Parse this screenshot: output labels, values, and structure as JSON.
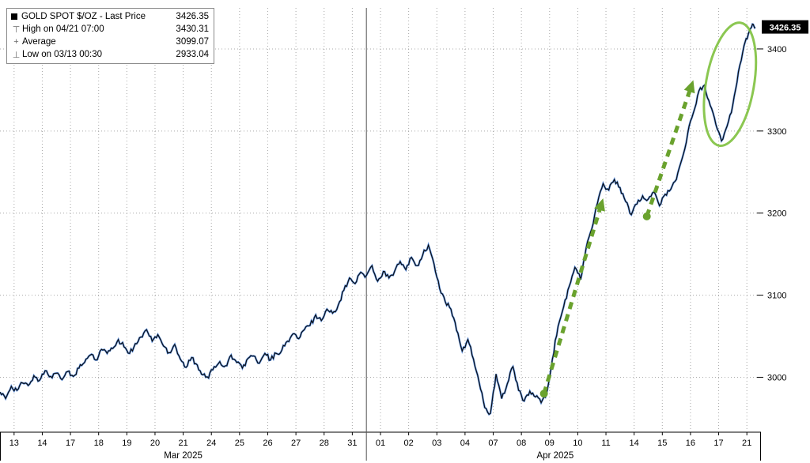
{
  "legend": {
    "title": "GOLD SPOT $/OZ - Last Price",
    "title_value": "3426.35",
    "rows": [
      {
        "icon": "high-marker-icon",
        "icon_glyph": "⊤",
        "label": "High on 04/21 07:00",
        "value": "3430.31"
      },
      {
        "icon": "average-marker-icon",
        "icon_glyph": "+",
        "label": "Average",
        "value": "3099.07"
      },
      {
        "icon": "low-marker-icon",
        "icon_glyph": "⊥",
        "label": "Low on 03/13 00:30",
        "value": "2933.04"
      }
    ]
  },
  "last_price_badge": "3426.35",
  "chart_data": {
    "type": "line",
    "title": "GOLD SPOT $/OZ - Last Price",
    "xlabel": "",
    "ylabel": "",
    "ylim": [
      2935,
      3450
    ],
    "y_ticks": [
      3000,
      3100,
      3200,
      3300,
      3400
    ],
    "x_ticks": [
      "13",
      "14",
      "17",
      "18",
      "19",
      "20",
      "21",
      "24",
      "25",
      "26",
      "27",
      "28",
      "31",
      "01",
      "02",
      "03",
      "04",
      "07",
      "08",
      "09",
      "10",
      "11",
      "14",
      "15",
      "16",
      "17",
      "21"
    ],
    "month_labels": [
      {
        "label": "Mar 2025",
        "center_day": 6.5
      },
      {
        "label": "Apr 2025",
        "center_day": 19.7
      }
    ],
    "month_divider_index": 13,
    "grid": true,
    "legend_position": "top-left",
    "last_price": 3426.35,
    "high": 3430.31,
    "average": 3099.07,
    "low": 2933.04,
    "colors": {
      "grid": "#a8a8a8",
      "axis": "#000000",
      "badge_bg": "#000000",
      "badge_text": "#ffffff"
    },
    "series": [
      {
        "name": "GOLD SPOT $/OZ Last Price",
        "color": "#0a0a0a",
        "glow": "#2f6fd0",
        "points": [
          [
            0.0,
            2982
          ],
          [
            0.2,
            2974
          ],
          [
            0.4,
            2989
          ],
          [
            0.6,
            2984
          ],
          [
            0.8,
            2993
          ],
          [
            1.0,
            2990
          ],
          [
            1.2,
            3002
          ],
          [
            1.4,
            2996
          ],
          [
            1.6,
            3008
          ],
          [
            1.8,
            3001
          ],
          [
            2.0,
            3005
          ],
          [
            2.2,
            2997
          ],
          [
            2.4,
            3007
          ],
          [
            2.6,
            3001
          ],
          [
            2.8,
            3011
          ],
          [
            3.0,
            3018
          ],
          [
            3.2,
            3027
          ],
          [
            3.4,
            3021
          ],
          [
            3.6,
            3034
          ],
          [
            3.8,
            3029
          ],
          [
            4.0,
            3035
          ],
          [
            4.2,
            3046
          ],
          [
            4.4,
            3037
          ],
          [
            4.6,
            3029
          ],
          [
            4.8,
            3041
          ],
          [
            5.0,
            3049
          ],
          [
            5.2,
            3058
          ],
          [
            5.4,
            3044
          ],
          [
            5.6,
            3052
          ],
          [
            5.8,
            3038
          ],
          [
            6.0,
            3030
          ],
          [
            6.2,
            3040
          ],
          [
            6.4,
            3022
          ],
          [
            6.6,
            3012
          ],
          [
            6.8,
            3024
          ],
          [
            7.0,
            3015
          ],
          [
            7.2,
            3003
          ],
          [
            7.4,
            2999
          ],
          [
            7.6,
            3013
          ],
          [
            7.8,
            3019
          ],
          [
            8.0,
            3014
          ],
          [
            8.2,
            3027
          ],
          [
            8.4,
            3018
          ],
          [
            8.6,
            3011
          ],
          [
            8.8,
            3023
          ],
          [
            9.0,
            3026
          ],
          [
            9.2,
            3017
          ],
          [
            9.4,
            3029
          ],
          [
            9.6,
            3021
          ],
          [
            9.8,
            3029
          ],
          [
            10.0,
            3033
          ],
          [
            10.2,
            3044
          ],
          [
            10.4,
            3053
          ],
          [
            10.6,
            3047
          ],
          [
            10.8,
            3058
          ],
          [
            11.0,
            3063
          ],
          [
            11.2,
            3076
          ],
          [
            11.4,
            3069
          ],
          [
            11.6,
            3083
          ],
          [
            11.8,
            3078
          ],
          [
            12.0,
            3088
          ],
          [
            12.2,
            3106
          ],
          [
            12.4,
            3121
          ],
          [
            12.6,
            3114
          ],
          [
            12.8,
            3128
          ],
          [
            13.0,
            3124
          ],
          [
            13.2,
            3136
          ],
          [
            13.4,
            3117
          ],
          [
            13.6,
            3129
          ],
          [
            13.8,
            3121
          ],
          [
            14.0,
            3129
          ],
          [
            14.2,
            3141
          ],
          [
            14.4,
            3131
          ],
          [
            14.6,
            3146
          ],
          [
            14.8,
            3136
          ],
          [
            15.0,
            3149
          ],
          [
            15.2,
            3161
          ],
          [
            15.4,
            3138
          ],
          [
            15.6,
            3108
          ],
          [
            15.8,
            3092
          ],
          [
            16.0,
            3083
          ],
          [
            16.2,
            3057
          ],
          [
            16.4,
            3032
          ],
          [
            16.6,
            3046
          ],
          [
            16.8,
            3022
          ],
          [
            17.0,
            2994
          ],
          [
            17.2,
            2963
          ],
          [
            17.4,
            2956
          ],
          [
            17.6,
            3004
          ],
          [
            17.8,
            2974
          ],
          [
            18.0,
            2992
          ],
          [
            18.2,
            3013
          ],
          [
            18.4,
            2984
          ],
          [
            18.6,
            2971
          ],
          [
            18.8,
            2983
          ],
          [
            19.0,
            2976
          ],
          [
            19.2,
            2969
          ],
          [
            19.4,
            2981
          ],
          [
            19.6,
            3022
          ],
          [
            19.8,
            3062
          ],
          [
            20.0,
            3086
          ],
          [
            20.2,
            3111
          ],
          [
            20.4,
            3134
          ],
          [
            20.6,
            3119
          ],
          [
            20.8,
            3158
          ],
          [
            21.0,
            3181
          ],
          [
            21.2,
            3212
          ],
          [
            21.4,
            3236
          ],
          [
            21.6,
            3228
          ],
          [
            21.8,
            3241
          ],
          [
            22.0,
            3231
          ],
          [
            22.2,
            3214
          ],
          [
            22.4,
            3198
          ],
          [
            22.6,
            3211
          ],
          [
            22.8,
            3221
          ],
          [
            23.0,
            3217
          ],
          [
            23.2,
            3226
          ],
          [
            23.4,
            3209
          ],
          [
            23.6,
            3223
          ],
          [
            23.8,
            3229
          ],
          [
            24.0,
            3241
          ],
          [
            24.2,
            3266
          ],
          [
            24.4,
            3297
          ],
          [
            24.6,
            3322
          ],
          [
            24.8,
            3349
          ],
          [
            25.0,
            3356
          ],
          [
            25.2,
            3331
          ],
          [
            25.4,
            3308
          ],
          [
            25.6,
            3288
          ],
          [
            25.8,
            3306
          ],
          [
            26.0,
            3332
          ],
          [
            26.2,
            3372
          ],
          [
            26.4,
            3404
          ],
          [
            26.55,
            3418
          ],
          [
            26.7,
            3430.31
          ],
          [
            26.8,
            3426.35
          ]
        ]
      }
    ],
    "annotations": {
      "arrow_color": "#6aa22e",
      "ellipse_color": "#7ec13e",
      "arrows": [
        {
          "from": [
            19.3,
            2980
          ],
          "to": [
            21.4,
            3218
          ]
        },
        {
          "from": [
            22.95,
            3196
          ],
          "to": [
            24.6,
            3362
          ]
        }
      ],
      "ellipse": {
        "cx": 25.9,
        "cy": 3357,
        "rx_days": 0.85,
        "ry_price": 76,
        "rotate_deg": 10
      }
    }
  }
}
